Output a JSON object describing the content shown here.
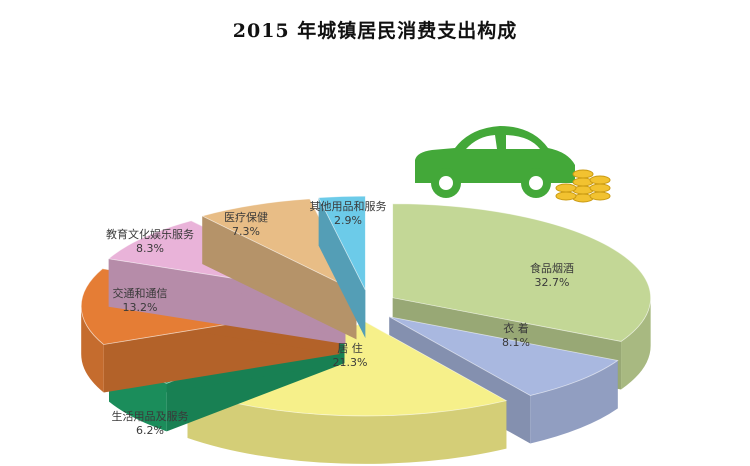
{
  "chart_data": {
    "type": "pie",
    "title": "2015 年城镇居民消费支出构成",
    "slices": [
      {
        "name": "食品烟酒",
        "value": 32.7,
        "label": "32.7%",
        "color": "#c3d796"
      },
      {
        "name": "衣 着",
        "value": 8.1,
        "label": "8.1%",
        "color": "#a9b8e0"
      },
      {
        "name": "居 住",
        "value": 21.3,
        "label": "21.3%",
        "color": "#f6f08a"
      },
      {
        "name": "生活用品及服务",
        "value": 6.2,
        "label": "6.2%",
        "color": "#1fa46a"
      },
      {
        "name": "交通和通信",
        "value": 13.2,
        "label": "13.2%",
        "color": "#e57d35"
      },
      {
        "name": "教育文化娱乐服务",
        "value": 8.3,
        "label": "8.3%",
        "color": "#e9b3d9"
      },
      {
        "name": "医疗保健",
        "value": 7.3,
        "label": "7.3%",
        "color": "#e8bd86"
      },
      {
        "name": "其他用品和服务",
        "value": 2.9,
        "label": "2.9%",
        "color": "#6ccbe9"
      }
    ],
    "decoration": {
      "car_color": "#43a839",
      "coin_color": "#f2c230"
    }
  }
}
